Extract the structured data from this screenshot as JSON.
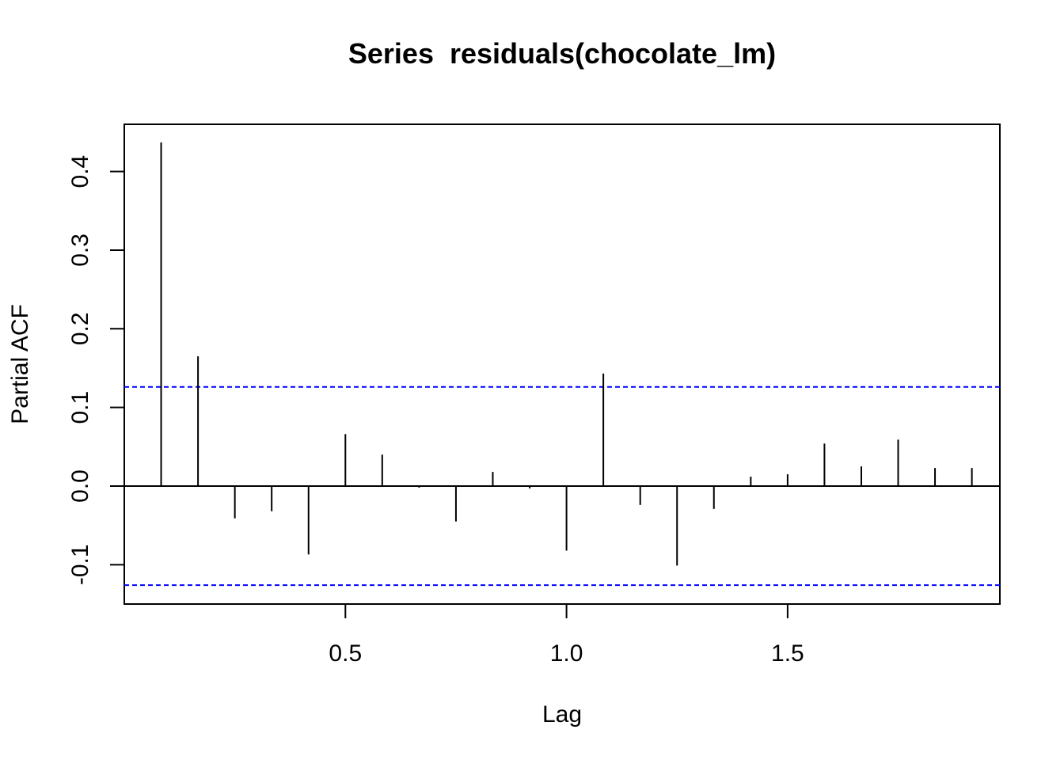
{
  "chart_data": {
    "type": "bar",
    "title": "Series  residuals(chocolate_lm)",
    "xlabel": "Lag",
    "ylabel": "Partial ACF",
    "xlim": [
      0.0,
      1.98
    ],
    "ylim": [
      -0.15,
      0.46
    ],
    "x_ticks": [
      {
        "value": 0.5,
        "label": "0.5"
      },
      {
        "value": 1.0,
        "label": "1.0"
      },
      {
        "value": 1.5,
        "label": "1.5"
      }
    ],
    "y_ticks": [
      {
        "value": -0.1,
        "label": "-0.1"
      },
      {
        "value": 0.0,
        "label": "0.0"
      },
      {
        "value": 0.1,
        "label": "0.1"
      },
      {
        "value": 0.2,
        "label": "0.2"
      },
      {
        "value": 0.3,
        "label": "0.3"
      },
      {
        "value": 0.4,
        "label": "0.4"
      }
    ],
    "confidence_bound": 0.126,
    "confidence_color": "#0000FF",
    "series": [
      {
        "x": [
          0.0833,
          0.1667,
          0.25,
          0.3333,
          0.4167,
          0.5,
          0.5833,
          0.6667,
          0.75,
          0.8333,
          0.9167,
          1.0,
          1.0833,
          1.1667,
          1.25,
          1.3333,
          1.4167,
          1.5,
          1.5833,
          1.6667,
          1.75,
          1.8333,
          1.9167
        ],
        "values": [
          0.437,
          0.165,
          -0.041,
          -0.032,
          -0.087,
          0.066,
          0.04,
          -0.002,
          -0.045,
          0.018,
          -0.003,
          -0.082,
          0.143,
          -0.024,
          -0.101,
          -0.029,
          0.012,
          0.015,
          0.054,
          0.025,
          0.059,
          0.023,
          0.023
        ]
      }
    ],
    "grid": false
  }
}
